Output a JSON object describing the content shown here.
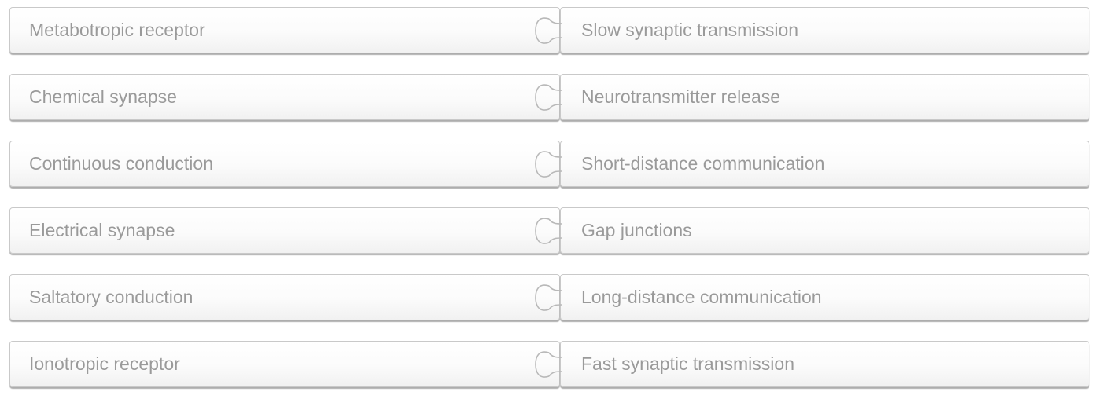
{
  "pairs": [
    {
      "term": "Metabotropic receptor",
      "match": "Slow synaptic transmission"
    },
    {
      "term": "Chemical synapse",
      "match": "Neurotransmitter release"
    },
    {
      "term": "Continuous conduction",
      "match": "Short-distance communication"
    },
    {
      "term": "Electrical synapse",
      "match": "Gap junctions"
    },
    {
      "term": "Saltatory conduction",
      "match": "Long-distance communication"
    },
    {
      "term": "Ionotropic receptor",
      "match": "Fast synaptic transmission"
    }
  ],
  "icons": {
    "connector": "puzzle-connector-icon"
  },
  "colors": {
    "text": "#9a9a9a",
    "border": "#c9c9c9",
    "background": "#ffffff"
  }
}
